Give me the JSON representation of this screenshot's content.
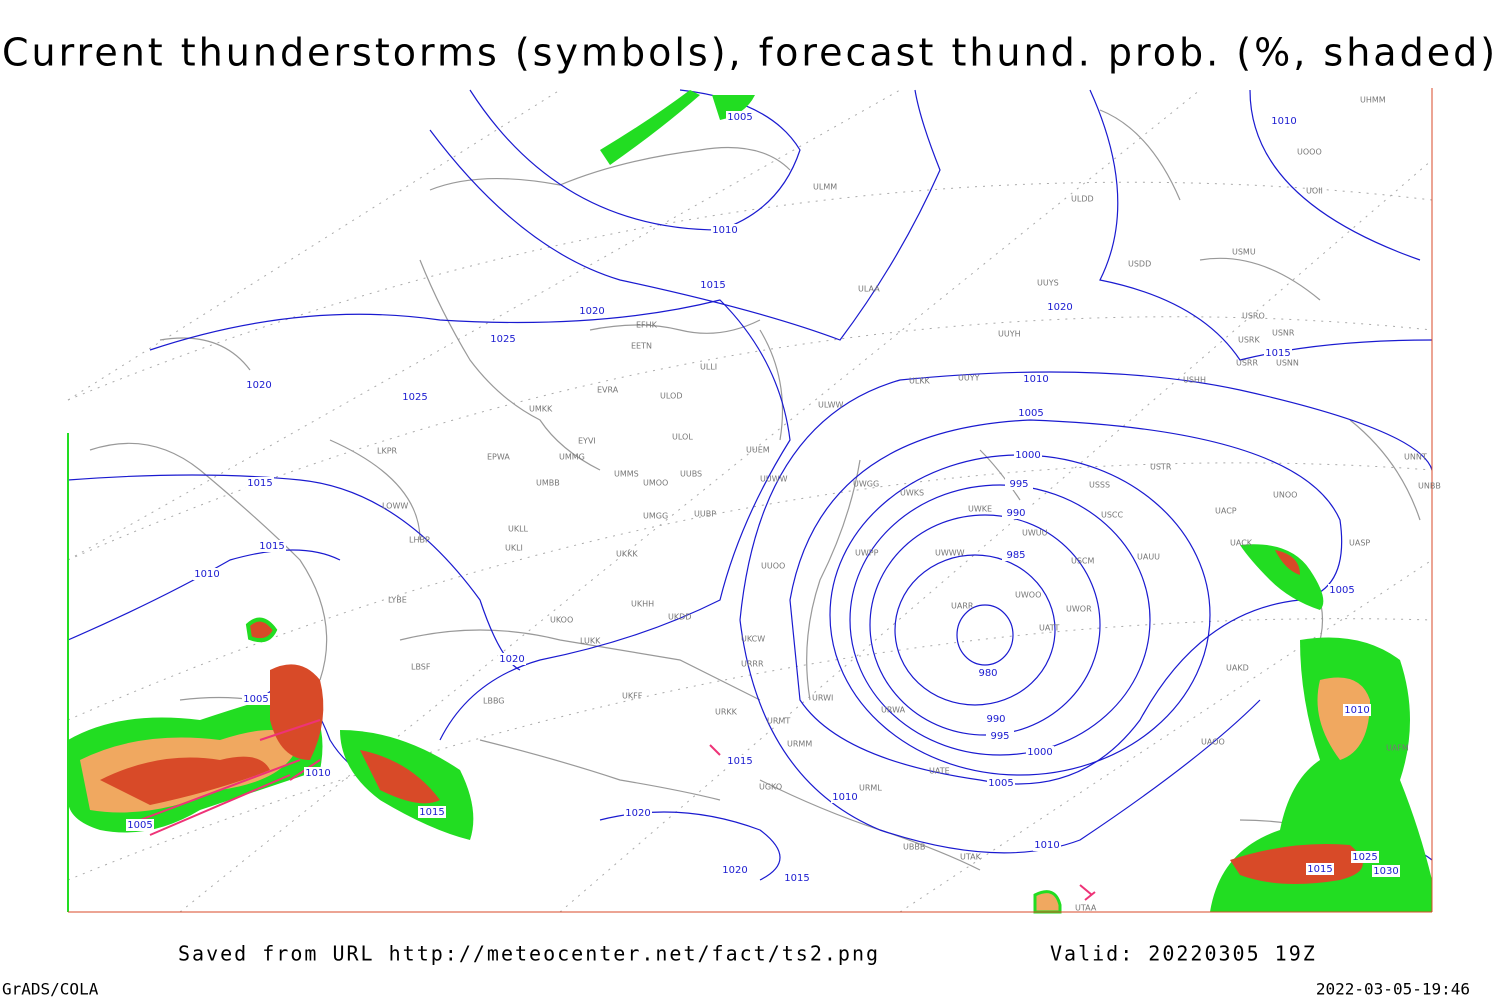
{
  "header": {
    "title": "Current thunderstorms (symbols), forecast thund. prob. (%, shaded)"
  },
  "isobar_labels": [
    "1005",
    "1010",
    "1010",
    "1015",
    "1020",
    "1025",
    "1020",
    "1020",
    "1025",
    "1015",
    "1015",
    "1010",
    "1010",
    "1005",
    "1000",
    "995",
    "990",
    "985",
    "980",
    "990",
    "995",
    "1000",
    "1005",
    "1010",
    "1015",
    "1005",
    "1010",
    "1020",
    "1005",
    "1010",
    "1015",
    "1005",
    "1015",
    "1020",
    "1010",
    "1020",
    "1015",
    "1025",
    "1030",
    "1015"
  ],
  "stations": [
    "ULMM",
    "ULDD",
    "USDD",
    "USMU",
    "UUYS",
    "ULAA",
    "USRO",
    "USRK",
    "USNR",
    "USRR",
    "USNN",
    "UUYH",
    "USHH",
    "ULKK",
    "UUYY",
    "ULWW",
    "EFHK",
    "EETN",
    "ULLI",
    "EVRA",
    "ULOD",
    "UMKK",
    "ULOL",
    "EYVI",
    "EPWA",
    "UMMG",
    "LKPR",
    "UUEM",
    "UMMS",
    "UMOO",
    "UUBS",
    "UUWW",
    "UMBB",
    "UWGG",
    "UWKS",
    "USSS",
    "USTR",
    "UNOO",
    "LOWW",
    "LHBP",
    "UKLL",
    "UKLI",
    "UMGG",
    "UUBP",
    "UWKE",
    "UWUU",
    "USCC",
    "UACP",
    "UACK",
    "UASP",
    "UKKK",
    "UUOO",
    "UWPP",
    "UWWW",
    "USCM",
    "UAUU",
    "UARR",
    "UWOO",
    "UWOR",
    "UATT",
    "LYBE",
    "UKHH",
    "UKDD",
    "UKOO",
    "LUKK",
    "UKCW",
    "URRR",
    "LBSF",
    "LBBG",
    "UKFF",
    "URKK",
    "URWI",
    "URMT",
    "URMM",
    "URWA",
    "UATE",
    "UAKD",
    "UAOO",
    "UTAA",
    "UTAK",
    "UBBB",
    "UGKO",
    "URML",
    "UNNT",
    "UNBB",
    "UAFM",
    "UHMM",
    "UOII",
    "UOOO"
  ],
  "footer": {
    "saved": "Saved from URL http://meteocenter.net/fact/ts2.png",
    "valid": "Valid: 20220305 19Z",
    "software": "GrADS/COLA",
    "timestamp": "2022-03-05-19:46"
  }
}
